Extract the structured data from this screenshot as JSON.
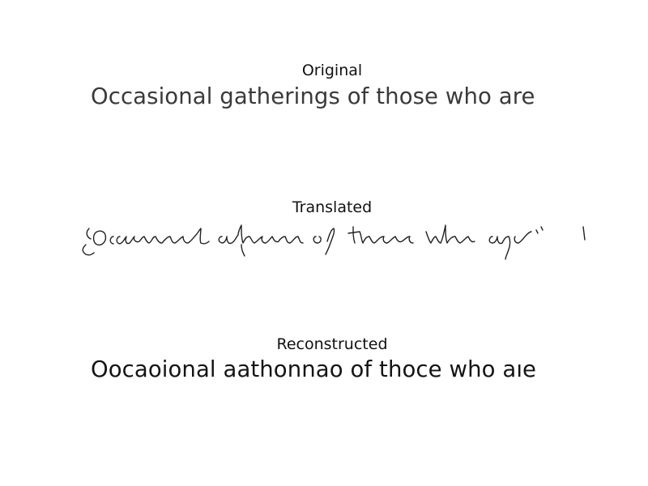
{
  "panels": {
    "original": {
      "title": "Original",
      "text": "Occasional gatherings of those who are"
    },
    "translated": {
      "title": "Translated",
      "text": "Occasional gatherings of those who are"
    },
    "reconstructed": {
      "title": "Reconstructed",
      "text": "Oocaoional aathonnao of thoce who aıe"
    }
  },
  "colors": {
    "background": "#ffffff",
    "original_text": "#3a3a3a",
    "translated_ink": "#222222",
    "reconstructed_text": "#141414"
  }
}
